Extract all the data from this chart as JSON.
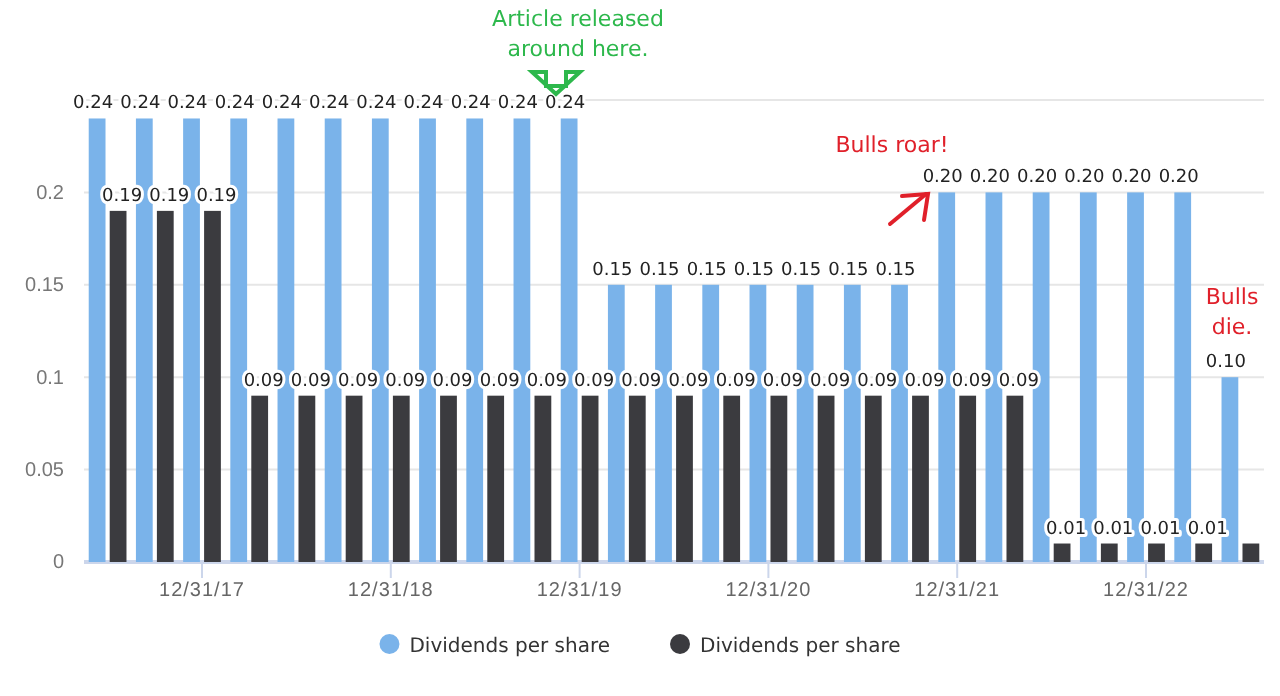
{
  "chart_data": {
    "type": "bar",
    "categories": [
      null,
      null,
      "12/31/17",
      null,
      null,
      null,
      "12/31/18",
      null,
      null,
      null,
      "12/31/19",
      null,
      null,
      null,
      "12/31/20",
      null,
      null,
      null,
      "12/31/21",
      null,
      null,
      null,
      "12/31/22",
      null,
      null
    ],
    "series": [
      {
        "name": "Dividends per share",
        "color": "#7ab3ea",
        "values": [
          0.24,
          0.24,
          0.24,
          0.24,
          0.24,
          0.24,
          0.24,
          0.24,
          0.24,
          0.24,
          0.24,
          0.15,
          0.15,
          0.15,
          0.15,
          0.15,
          0.15,
          0.15,
          0.2,
          0.2,
          0.2,
          0.2,
          0.2,
          0.2,
          0.1
        ],
        "value_labels": [
          "0.24",
          "0.24",
          "0.24",
          "0.24",
          "0.24",
          "0.24",
          "0.24",
          "0.24",
          "0.24",
          "0.24",
          "0.24",
          "0.15",
          "0.15",
          "0.15",
          "0.15",
          "0.15",
          "0.15",
          "0.15",
          "0.20",
          "0.20",
          "0.20",
          "0.20",
          "0.20",
          "0.20",
          "0.10"
        ]
      },
      {
        "name": "Dividends per share",
        "color": "#3b3b3f",
        "values": [
          0.19,
          0.19,
          0.19,
          0.09,
          0.09,
          0.09,
          0.09,
          0.09,
          0.09,
          0.09,
          0.09,
          0.09,
          0.09,
          0.09,
          0.09,
          0.09,
          0.09,
          0.09,
          0.09,
          0.09,
          0.01,
          0.01,
          0.01,
          0.01,
          0.01
        ],
        "value_labels": [
          "0.19",
          "0.19",
          "0.19",
          "0.09",
          "0.09",
          "0.09",
          "0.09",
          "0.09",
          "0.09",
          "0.09",
          "0.09",
          "0.09",
          "0.09",
          "0.09",
          "0.09",
          "0.09",
          "0.09",
          "0.09",
          "0.09",
          "0.09",
          "0.01",
          "0.01",
          "0.01",
          "0.01",
          null
        ]
      }
    ],
    "ylim": [
      0,
      0.25
    ],
    "yticks": [
      0,
      0.05,
      0.1,
      0.15,
      0.2,
      {
        "value": 0.25,
        "label": null
      }
    ],
    "grid": "y",
    "legend": "bottom",
    "annotations": [
      "Article released around here.",
      "Bulls roar!",
      "Bulls die."
    ]
  }
}
